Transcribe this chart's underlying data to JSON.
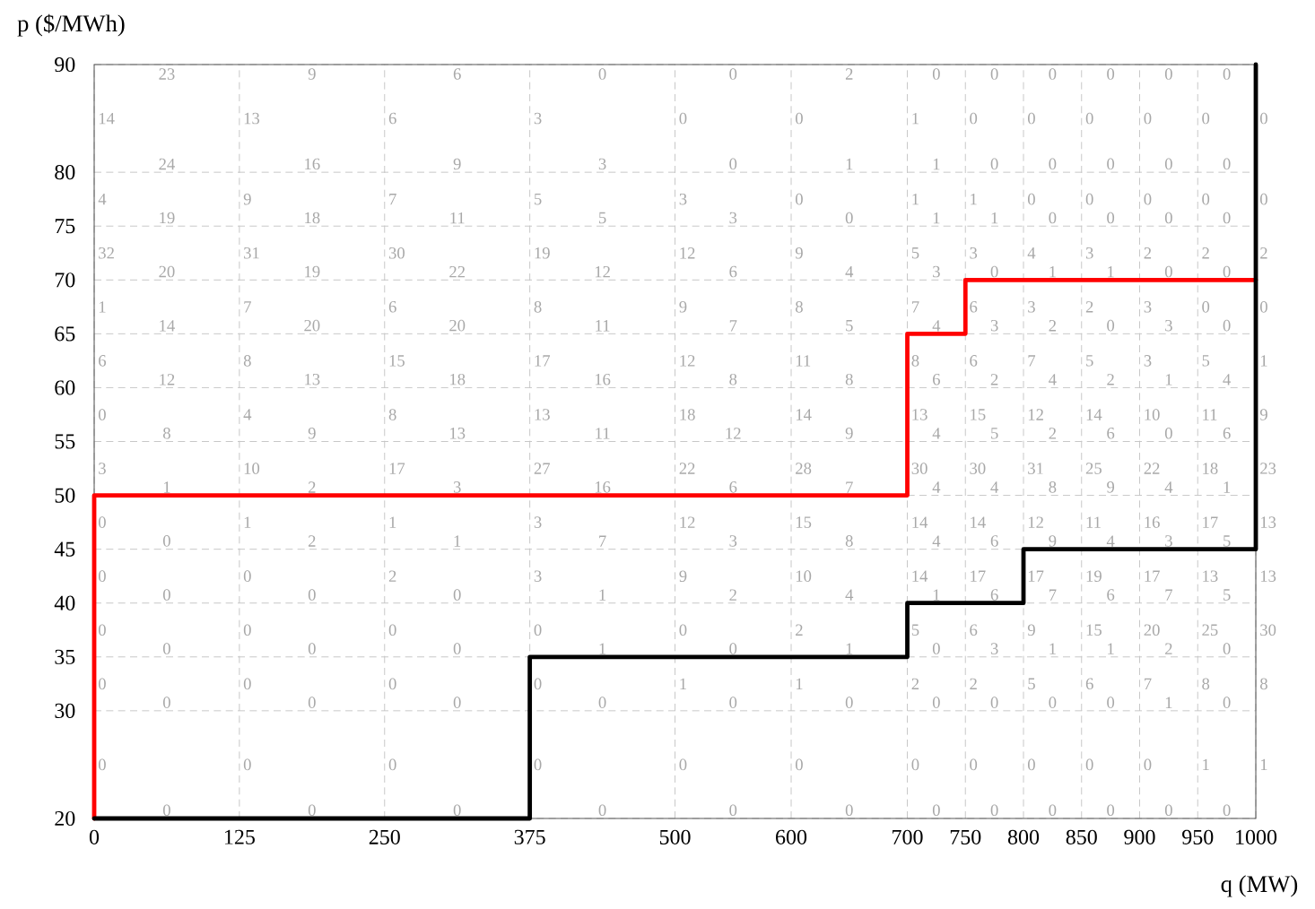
{
  "chart_data": {
    "type": "line",
    "xlabel": "q (MW)",
    "ylabel": "p ($/MWh)",
    "xlim": [
      0,
      1000
    ],
    "ylim": [
      20,
      90
    ],
    "xticks": [
      0,
      125,
      250,
      375,
      500,
      600,
      700,
      750,
      800,
      850,
      900,
      950,
      1000
    ],
    "yticks": [
      20,
      30,
      35,
      40,
      45,
      50,
      55,
      60,
      65,
      70,
      75,
      80,
      90
    ],
    "grid": true,
    "series": [
      {
        "color": "#ff0000",
        "x": [
          0,
          0,
          700,
          700,
          750,
          750,
          1000
        ],
        "values": [
          20,
          50,
          50,
          65,
          65,
          70,
          70
        ]
      },
      {
        "color": "#000000",
        "x": [
          0,
          375,
          375,
          700,
          700,
          800,
          800,
          1000,
          1000
        ],
        "values": [
          20,
          20,
          35,
          35,
          40,
          40,
          45,
          45,
          90
        ]
      }
    ],
    "annotations": [
      "14",
      "13",
      "6",
      "3",
      "0",
      "0",
      "1",
      "0",
      "0",
      "0",
      "0",
      "0",
      "0",
      "4",
      "9",
      "7",
      "5",
      "3",
      "0",
      "1",
      "1",
      "0",
      "0",
      "0",
      "0",
      "0",
      "32",
      "31",
      "30",
      "19",
      "12",
      "9",
      "5",
      "3",
      "4",
      "3",
      "2",
      "2",
      "2",
      "1",
      "7",
      "6",
      "8",
      "9",
      "8",
      "7",
      "6",
      "3",
      "2",
      "3",
      "0",
      "0",
      "6",
      "8",
      "15",
      "17",
      "12",
      "11",
      "8",
      "6",
      "7",
      "5",
      "3",
      "5",
      "1",
      "0",
      "4",
      "8",
      "13",
      "18",
      "14",
      "13",
      "15",
      "12",
      "14",
      "10",
      "11",
      "9",
      "3",
      "10",
      "17",
      "27",
      "22",
      "28",
      "30",
      "30",
      "31",
      "25",
      "22",
      "18",
      "23",
      "0",
      "1",
      "1",
      "3",
      "12",
      "15",
      "14",
      "14",
      "12",
      "11",
      "16",
      "17",
      "13",
      "0",
      "0",
      "2",
      "3",
      "9",
      "10",
      "14",
      "17",
      "17",
      "19",
      "17",
      "13",
      "13",
      "0",
      "0",
      "0",
      "0",
      "0",
      "2",
      "5",
      "6",
      "9",
      "15",
      "20",
      "25",
      "30",
      "0",
      "0",
      "0",
      "0",
      "1",
      "1",
      "2",
      "2",
      "5",
      "6",
      "7",
      "8",
      "8",
      "0",
      "0",
      "0",
      "0",
      "0",
      "0",
      "0",
      "0",
      "0",
      "0",
      "0",
      "1",
      "1",
      "23",
      "9",
      "6",
      "0",
      "0",
      "2",
      "0",
      "0",
      "0",
      "0",
      "0",
      "0",
      "24",
      "16",
      "9",
      "3",
      "0",
      "1",
      "1",
      "0",
      "0",
      "0",
      "0",
      "0",
      "19",
      "18",
      "11",
      "5",
      "3",
      "0",
      "1",
      "1",
      "0",
      "0",
      "0",
      "0",
      "20",
      "19",
      "22",
      "12",
      "6",
      "4",
      "3",
      "0",
      "1",
      "1",
      "0",
      "0",
      "14",
      "20",
      "20",
      "11",
      "7",
      "5",
      "4",
      "3",
      "2",
      "0",
      "3",
      "0",
      "12",
      "13",
      "18",
      "16",
      "8",
      "8",
      "6",
      "2",
      "4",
      "2",
      "1",
      "4",
      "8",
      "9",
      "13",
      "11",
      "12",
      "9",
      "4",
      "5",
      "2",
      "6",
      "0",
      "6",
      "1",
      "2",
      "3",
      "16",
      "6",
      "7",
      "4",
      "4",
      "8",
      "9",
      "4",
      "1",
      "0",
      "2",
      "1",
      "7",
      "3",
      "8",
      "4",
      "6",
      "9",
      "4",
      "3",
      "5",
      "0",
      "0",
      "0",
      "1",
      "2",
      "4",
      "1",
      "6",
      "7",
      "6",
      "7",
      "5",
      "0",
      "0",
      "0",
      "1",
      "0",
      "1",
      "0",
      "3",
      "1",
      "1",
      "2",
      "0",
      "0",
      "0",
      "0",
      "0",
      "0",
      "0",
      "0",
      "0",
      "0",
      "0",
      "1",
      "0",
      "0",
      "0",
      "0",
      "0",
      "0",
      "0",
      "0",
      "0",
      "0",
      "0",
      "0",
      "0"
    ]
  }
}
